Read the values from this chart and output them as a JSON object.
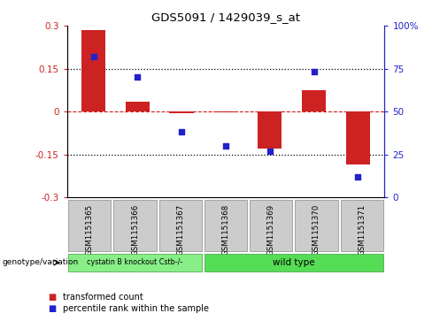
{
  "title": "GDS5091 / 1429039_s_at",
  "samples": [
    "GSM1151365",
    "GSM1151366",
    "GSM1151367",
    "GSM1151368",
    "GSM1151369",
    "GSM1151370",
    "GSM1151371"
  ],
  "bar_values": [
    0.285,
    0.035,
    -0.005,
    -0.003,
    -0.13,
    0.075,
    -0.185
  ],
  "percentile_values": [
    82,
    70,
    38,
    30,
    27,
    73,
    12
  ],
  "ylim_left": [
    -0.3,
    0.3
  ],
  "ylim_right": [
    0,
    100
  ],
  "yticks_left": [
    -0.3,
    -0.15,
    0.0,
    0.15,
    0.3
  ],
  "ytick_labels_left": [
    "-0.3",
    "-0.15",
    "0",
    "0.15",
    "0.3"
  ],
  "yticks_right": [
    0,
    25,
    50,
    75,
    100
  ],
  "ytick_labels_right": [
    "0",
    "25",
    "50",
    "75",
    "100%"
  ],
  "bar_color": "#cc2222",
  "scatter_color": "#2222cc",
  "zero_line_color": "#cc2222",
  "dotted_line_color": "#000000",
  "group1_label": "cystatin B knockout Cstb-/-",
  "group2_label": "wild type",
  "group1_count": 3,
  "group2_count": 4,
  "group1_color": "#88ee88",
  "group2_color": "#55dd55",
  "genotype_label": "genotype/variation",
  "legend_bar_label": "transformed count",
  "legend_scatter_label": "percentile rank within the sample",
  "bar_width": 0.55,
  "sample_box_color": "#cccccc",
  "sample_box_edge": "#888888"
}
